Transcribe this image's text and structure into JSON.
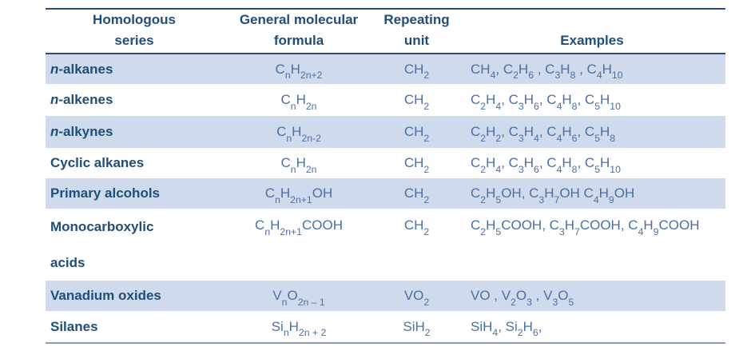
{
  "colors": {
    "header-text": "#1f4e79",
    "body-text": "#4c6fa6",
    "stripe": "#cfdbec",
    "rule-dark": "#2e4d7b",
    "rule-light": "#8c9db4",
    "background": "#ffffff"
  },
  "table": {
    "columns": [
      {
        "label": "Homologous\nseries"
      },
      {
        "label": "General molecular\nformula"
      },
      {
        "label": "Repeating\nunit"
      },
      {
        "label": "Examples"
      }
    ],
    "rows": [
      {
        "series": "*n*-alkanes",
        "formula": "C~n~H~2n+2~",
        "unit": "CH~2~",
        "examples": "CH~4~, C~2~H~6~ , C~3~H~8~ , C~4~H~10~"
      },
      {
        "series": "*n*-alkenes",
        "formula": "C~n~H~2n~",
        "unit": "CH~2~",
        "examples": "C~2~H~4~, C~3~H~6~, C~4~H~8~, C~5~H~10~"
      },
      {
        "series": "*n*-alkynes",
        "formula": "C~n~H~2n-2~",
        "unit": "CH~2~",
        "examples": "C~2~H~2~, C~3~H~4~, C~4~H~6~, C~5~H~8~"
      },
      {
        "series": "Cyclic alkanes",
        "formula": "C~n~H~2n~",
        "unit": "CH~2~",
        "examples": "C~2~H~4~, C~3~H~6~, C~4~H~8~, C~5~H~10~"
      },
      {
        "series": "Primary alcohols",
        "formula": "C~n~H~2n+1~OH",
        "unit": "CH~2~",
        "examples": "C~2~H~5~OH, C~3~H~7~OH C~4~H~9~OH"
      },
      {
        "series": "Monocarboxylic\nacids",
        "formula": "C~n~H~2n+1~COOH",
        "unit": "CH~2~",
        "examples": "C~2~H~5~COOH, C~3~H~7~COOH, C~4~H~9~COOH"
      },
      {
        "series": "Vanadium oxides",
        "formula": "V~n~O~2n – 1~",
        "unit": "VO~2~",
        "examples": "VO , V~2~O~3~ , V~3~O~5~"
      },
      {
        "series": "Silanes",
        "formula": "Si~n~H~2n + 2~",
        "unit": "SiH~2~",
        "examples": "SiH~4~, Si~2~H~6~,"
      }
    ]
  }
}
